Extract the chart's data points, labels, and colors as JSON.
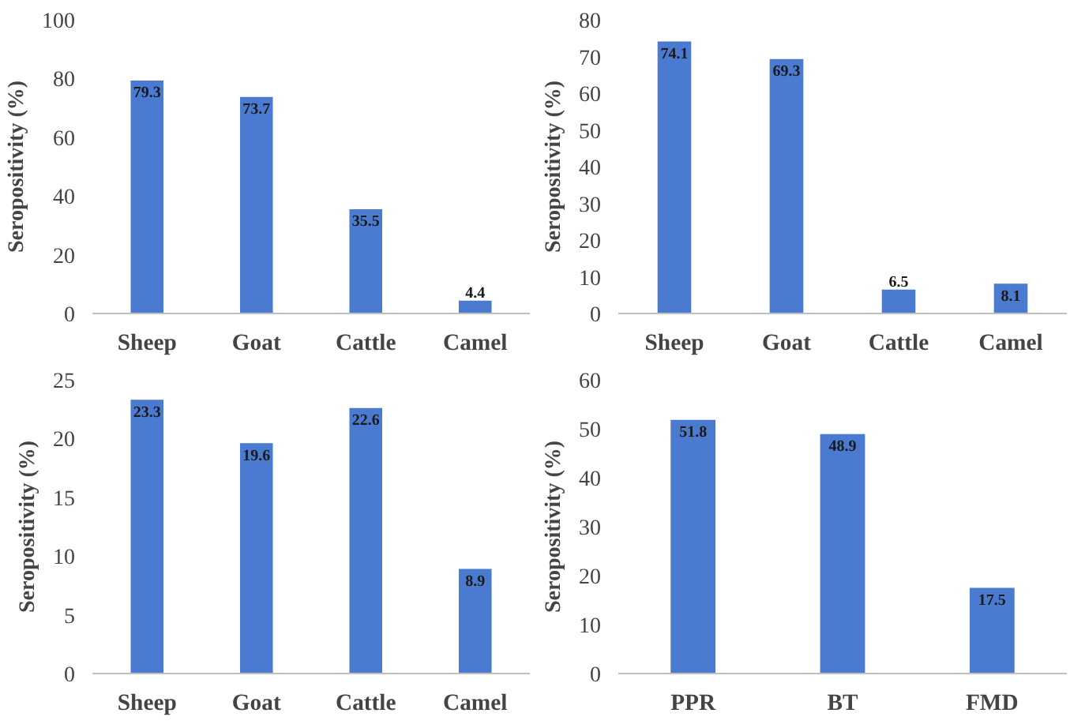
{
  "chart_data": [
    {
      "type": "bar",
      "ylabel": "Seropositivity (%)",
      "categories": [
        "Sheep",
        "Goat",
        "Cattle",
        "Camel"
      ],
      "values": [
        79.3,
        73.7,
        35.5,
        4.4
      ],
      "color": "#4a7bd0",
      "ylim": [
        0,
        100
      ],
      "yticks": [
        0,
        20,
        40,
        60,
        80,
        100
      ],
      "data_labels": true,
      "grid": false
    },
    {
      "type": "bar",
      "ylabel": "Seropositivity (%)",
      "categories": [
        "Sheep",
        "Goat",
        "Cattle",
        "Camel"
      ],
      "values": [
        74.1,
        69.3,
        6.5,
        8.1
      ],
      "color": "#4a7bd0",
      "ylim": [
        0,
        80
      ],
      "yticks": [
        0,
        10,
        20,
        30,
        40,
        50,
        60,
        70,
        80
      ],
      "data_labels": true,
      "grid": false
    },
    {
      "type": "bar",
      "ylabel": "Seropositivity (%)",
      "categories": [
        "Sheep",
        "Goat",
        "Cattle",
        "Camel"
      ],
      "values": [
        23.3,
        19.6,
        22.6,
        8.9
      ],
      "color": "#4a7bd0",
      "ylim": [
        0,
        25
      ],
      "yticks": [
        0,
        5,
        10,
        15,
        20,
        25
      ],
      "data_labels": true,
      "grid": false
    },
    {
      "type": "bar",
      "ylabel": "Seropositivity (%)",
      "categories": [
        "PPR",
        "BT",
        "FMD"
      ],
      "values": [
        51.8,
        48.9,
        17.5
      ],
      "color": "#4a7bd0",
      "ylim": [
        0,
        60
      ],
      "yticks": [
        0,
        10,
        20,
        30,
        40,
        50,
        60
      ],
      "data_labels": true,
      "grid": false
    }
  ]
}
